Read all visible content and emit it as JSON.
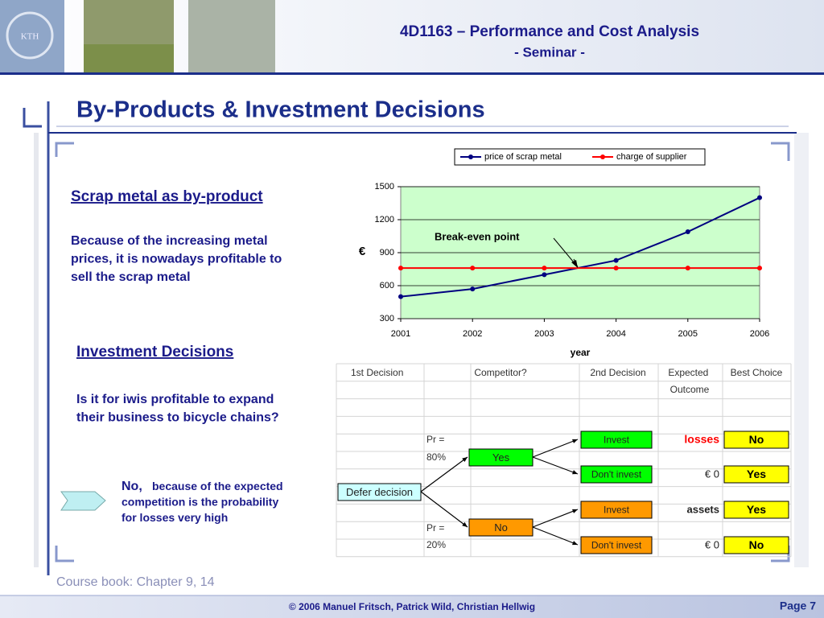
{
  "header": {
    "title": "4D1163 – Performance and Cost Analysis",
    "subtitle": "- Seminar -"
  },
  "slide_title": "By-Products & Investment Decisions",
  "section1": {
    "heading": "Scrap metal as by-product",
    "text": "Because of the increasing metal prices, it is nowadays profitable to sell the scrap metal"
  },
  "section2": {
    "heading": "Investment Decisions",
    "text": "Is it for iwis profitable to expand their business to bicycle chains?"
  },
  "conclusion": {
    "lead": "No,",
    "text": "because of the expected competition is the probability for losses very high"
  },
  "chart_data": {
    "type": "line",
    "categories": [
      "2001",
      "2002",
      "2003",
      "2004",
      "2005",
      "2006"
    ],
    "series": [
      {
        "name": "price of scrap metal",
        "color": "#000080",
        "values": [
          500,
          570,
          700,
          830,
          1090,
          1400
        ]
      },
      {
        "name": "charge of supplier",
        "color": "#ff0000",
        "values": [
          760,
          760,
          760,
          760,
          760,
          760
        ]
      }
    ],
    "ylim": [
      300,
      1500
    ],
    "yticks": [
      300,
      600,
      900,
      1200,
      1500
    ],
    "xlabel": "year",
    "ylabel": "€",
    "annotation": "Break-even point",
    "grid": true,
    "legend": "top",
    "plot_background": "#ccffcc"
  },
  "decision_table": {
    "headers": [
      "1st Decision",
      "Competitor?",
      "2nd Decision",
      "Expected Outcome",
      "Best Choice"
    ],
    "root": "Defer decision",
    "branches": [
      {
        "prob_label": "Pr =",
        "prob": "80%",
        "label": "Yes",
        "color": "#00ff00",
        "options": [
          {
            "label": "Invest",
            "outcome": "losses",
            "choice": "No"
          },
          {
            "label": "Don't invest",
            "outcome": "€ 0",
            "choice": "Yes"
          }
        ]
      },
      {
        "prob_label": "Pr =",
        "prob": "20%",
        "label": "No",
        "color": "#ff9900",
        "options": [
          {
            "label": "Invest",
            "outcome": "assets",
            "choice": "Yes"
          },
          {
            "label": "Don't invest",
            "outcome": "€ 0",
            "choice": "No"
          }
        ]
      }
    ]
  },
  "footer": {
    "book": "Course book: Chapter 9, 14",
    "copyright": "© 2006 Manuel Fritsch, Patrick Wild, Christian Hellwig",
    "page": "Page 7"
  }
}
